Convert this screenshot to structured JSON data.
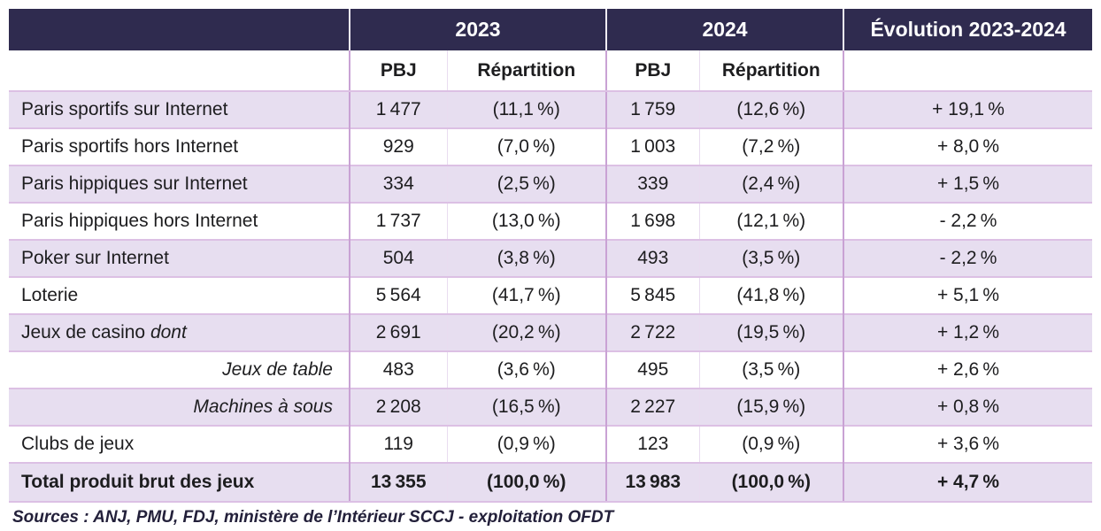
{
  "table": {
    "header": {
      "col_2023": "2023",
      "col_2024": "2024",
      "col_evolution": "Évolution 2023-2024"
    },
    "subheader": {
      "pbj_2023": "PBJ",
      "repartition_2023": "Répartition",
      "pbj_2024": "PBJ",
      "repartition_2024": "Répartition"
    },
    "rows": [
      {
        "label": "Paris sportifs sur Internet",
        "pbj_2023": "1 477",
        "rep_2023": "(11,1 %)",
        "pbj_2024": "1 759",
        "rep_2024": "(12,6 %)",
        "evolution": "+ 19,1 %"
      },
      {
        "label": "Paris sportifs hors Internet",
        "pbj_2023": "929",
        "rep_2023": "(7,0 %)",
        "pbj_2024": "1 003",
        "rep_2024": "(7,2 %)",
        "evolution": "+ 8,0 %"
      },
      {
        "label": "Paris hippiques sur Internet",
        "pbj_2023": "334",
        "rep_2023": "(2,5 %)",
        "pbj_2024": "339",
        "rep_2024": "(2,4 %)",
        "evolution": "+ 1,5 %"
      },
      {
        "label": "Paris hippiques hors Internet",
        "pbj_2023": "1 737",
        "rep_2023": "(13,0 %)",
        "pbj_2024": "1 698",
        "rep_2024": "(12,1 %)",
        "evolution": "- 2,2 %"
      },
      {
        "label": "Poker sur Internet",
        "pbj_2023": "504",
        "rep_2023": "(3,8 %)",
        "pbj_2024": "493",
        "rep_2024": "(3,5 %)",
        "evolution": "- 2,2 %"
      },
      {
        "label": "Loterie",
        "pbj_2023": "5 564",
        "rep_2023": "(41,7 %)",
        "pbj_2024": "5 845",
        "rep_2024": "(41,8 %)",
        "evolution": "+ 5,1 %"
      },
      {
        "label": "Jeux de casino",
        "label_italic": "dont",
        "pbj_2023": "2 691",
        "rep_2023": "(20,2 %)",
        "pbj_2024": "2 722",
        "rep_2024": "(19,5 %)",
        "evolution": "+ 1,2 %"
      },
      {
        "label": "Jeux de table",
        "pbj_2023": "483",
        "rep_2023": "(3,6 %)",
        "pbj_2024": "495",
        "rep_2024": "(3,5 %)",
        "evolution": "+ 2,6 %"
      },
      {
        "label": "Machines à sous",
        "pbj_2023": "2 208",
        "rep_2023": "(16,5 %)",
        "pbj_2024": "2 227",
        "rep_2024": "(15,9 %)",
        "evolution": "+ 0,8 %"
      },
      {
        "label": "Clubs de jeux",
        "pbj_2023": "119",
        "rep_2023": "(0,9 %)",
        "pbj_2024": "123",
        "rep_2024": "(0,9 %)",
        "evolution": "+ 3,6 %"
      },
      {
        "label": "Total produit brut des jeux",
        "pbj_2023": "13 355",
        "rep_2023": "(100,0 %)",
        "pbj_2024": "13 983",
        "rep_2024": "(100,0 %)",
        "evolution": "+ 4,7 %"
      }
    ],
    "sources": "Sources : ANJ, PMU, FDJ, ministère de l’Intérieur SCCJ - exploitation OFDT"
  },
  "colors": {
    "header_bg": "#2f2b4f",
    "header_text": "#ffffff",
    "row_alt_bg": "#e7def0",
    "row_bg": "#ffffff",
    "border_horizontal": "#dcc0e4",
    "border_vertical": "#c9a2d4",
    "border_vertical_faint": "#e9dcf0",
    "text": "#1d1d1f",
    "sources_text": "#23203a"
  }
}
